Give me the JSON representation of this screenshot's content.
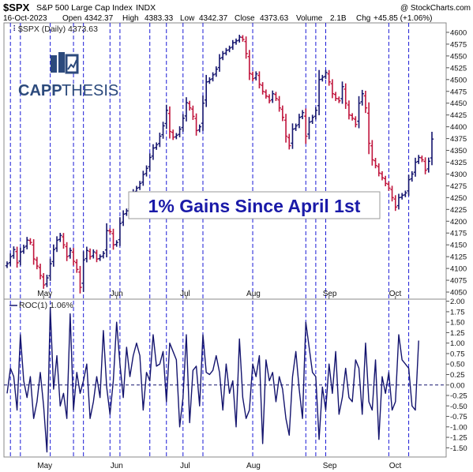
{
  "header": {
    "symbol": "$SPX",
    "name": "S&P 500 Large Cap Index",
    "exchange": "INDX",
    "attribution": "@ StockCharts.com",
    "date": "16-Oct-2023",
    "open_label": "Open",
    "open": "4342.37",
    "high_label": "High",
    "high": "4383.33",
    "low_label": "Low",
    "low": "4342.37",
    "close_label": "Close",
    "close": "4373.63",
    "volume_label": "Volume",
    "volume": "2.1B",
    "chg_label": "Chg",
    "chg": "+45.85 (+1.06%)"
  },
  "logo": {
    "text_a": "CAPP",
    "text_b": "THESIS",
    "color": "#2c4a7c"
  },
  "annotation": "1% Gains Since April 1st",
  "colors": {
    "up": "#14146e",
    "down": "#c0143c",
    "roc": "#14146e",
    "vline": "#1a1ad6",
    "annotation": "#1a1aa8"
  },
  "chart_data": [
    {
      "type": "ohlc",
      "legend": "$SPX (Daily) 4373.63",
      "ylim": [
        4035,
        4620
      ],
      "y_ticks": [
        "4600",
        "4575",
        "4550",
        "4525",
        "4500",
        "4475",
        "4450",
        "4425",
        "4400",
        "4375",
        "4350",
        "4325",
        "4300",
        "4275",
        "4250",
        "4225",
        "4200",
        "4175",
        "4150",
        "4125",
        "4100",
        "4075",
        "4050"
      ],
      "x_labels": [
        {
          "label": "May",
          "day": 11
        },
        {
          "label": "Jun",
          "day": 33
        },
        {
          "label": "Jul",
          "day": 54
        },
        {
          "label": "Aug",
          "day": 74
        },
        {
          "label": "Sep",
          "day": 97
        },
        {
          "label": "Oct",
          "day": 117
        }
      ],
      "highlight_days": [
        1,
        4,
        13,
        20,
        23,
        31,
        34,
        43,
        48,
        53,
        59,
        74,
        90,
        93,
        96,
        115,
        121
      ],
      "closes": [
        4110,
        4125,
        4140,
        4112,
        4135,
        4145,
        4160,
        4155,
        4120,
        4105,
        4085,
        4065,
        4080,
        4110,
        4140,
        4160,
        4170,
        4150,
        4125,
        4138,
        4115,
        4098,
        4060,
        4118,
        4138,
        4125,
        4135,
        4120,
        4125,
        4132,
        4180,
        4178,
        4150,
        4155,
        4195,
        4215,
        4222,
        4250,
        4262,
        4270,
        4280,
        4299,
        4312,
        4335,
        4355,
        4362,
        4380,
        4402,
        4435,
        4390,
        4378,
        4382,
        4395,
        4418,
        4451,
        4440,
        4422,
        4392,
        4400,
        4450,
        4495,
        4500,
        4510,
        4522,
        4545,
        4555,
        4562,
        4567,
        4578,
        4582,
        4590,
        4585,
        4555,
        4513,
        4502,
        4512,
        4490,
        4475,
        4465,
        4455,
        4470,
        4460,
        4440,
        4420,
        4380,
        4360,
        4395,
        4402,
        4420,
        4430,
        4380,
        4410,
        4420,
        4435,
        4500,
        4505,
        4515,
        4495,
        4470,
        4460,
        4455,
        4485,
        4450,
        4425,
        4418,
        4405,
        4450,
        4470,
        4440,
        4365,
        4330,
        4318,
        4302,
        4292,
        4280,
        4270,
        4250,
        4230,
        4250,
        4255,
        4260,
        4288,
        4300,
        4325,
        4335,
        4330,
        4308,
        4327,
        4374
      ]
    },
    {
      "type": "line",
      "legend": "ROC(1) 1.06%",
      "ylim": [
        -1.72,
        2.05
      ],
      "y_ticks": [
        "2.00",
        "1.75",
        "1.50",
        "1.25",
        "1.00",
        "0.75",
        "0.50",
        "0.25",
        "0.00",
        "-0.25",
        "-0.50",
        "-0.75",
        "-1.00",
        "-1.25",
        "-1.50"
      ],
      "zero_line": 0,
      "values": [
        -0.2,
        0.4,
        0.2,
        -0.6,
        1.2,
        0.1,
        -0.3,
        0.2,
        -0.8,
        -0.4,
        0.3,
        -0.5,
        -1.6,
        1.85,
        -0.1,
        0.7,
        -0.5,
        -0.2,
        -0.8,
        1.7,
        -0.6,
        0.3,
        -0.2,
        0.1,
        0.5,
        -0.8,
        -0.4,
        0.2,
        -0.3,
        1.3,
        -0.05,
        -0.7,
        0.1,
        1.5,
        0.5,
        -0.3,
        0.9,
        0.2,
        0.7,
        1.0,
        0.7,
        -0.6,
        0.3,
        0.1,
        1.2,
        0.45,
        0.5,
        0.8,
        -0.4,
        1.0,
        0.8,
        0.6,
        -1.0,
        -0.3,
        1.2,
        -0.9,
        0.35,
        0.45,
        -0.5,
        1.2,
        0.3,
        0.25,
        0.35,
        0.7,
        0.3,
        -0.6,
        0.5,
        -0.2,
        0.1,
        -1.0,
        1.1,
        -0.3,
        -0.8,
        -0.6,
        0.5,
        0.2,
        0.7,
        -1.4,
        0.6,
        0.1,
        0.3,
        -0.4,
        0.2,
        -0.1,
        -0.8,
        -1.2,
        0.2,
        0.8,
        -0.1,
        -0.8,
        1.5,
        0.9,
        0.3,
        0.2,
        -1.3,
        -0.05,
        -0.6,
        0.5,
        -0.2,
        0.8,
        -0.7,
        -0.3,
        0.4,
        -0.3,
        -0.4,
        0.6,
        0.4,
        -0.7,
        1.0,
        -0.4,
        -0.6,
        0.6,
        -1.3,
        0.2,
        -0.2,
        0.3,
        -0.6,
        -0.4,
        1.2,
        0.6,
        0.5,
        0.4,
        -0.5,
        -0.6,
        1.06
      ]
    }
  ]
}
